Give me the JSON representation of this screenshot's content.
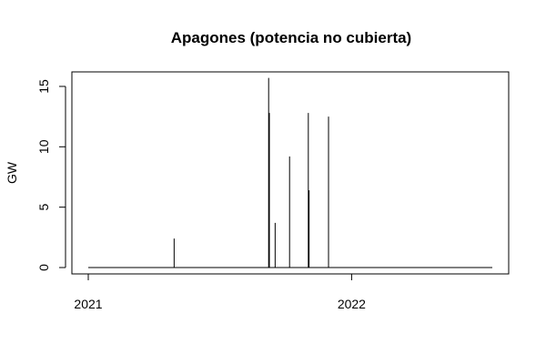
{
  "chart_data": {
    "type": "line",
    "title": "Apagones (potencia no cubierta)",
    "xlabel": "",
    "ylabel": "GW",
    "x_is_date": true,
    "xlim": [
      "2021-01-01",
      "2022-07-15"
    ],
    "ylim": [
      0,
      15.6
    ],
    "x_ticks": [
      {
        "label": "2021",
        "date": "2021-01-01"
      },
      {
        "label": "2022",
        "date": "2022-01-01"
      }
    ],
    "y_ticks": [
      0,
      5,
      10,
      15
    ],
    "grid": false,
    "legend": "none",
    "series": [
      {
        "points": [
          {
            "x": "2021-01-01",
            "y": 0
          },
          {
            "x": "2021-04-30",
            "y": 2.4
          },
          {
            "x": "2021-09-08",
            "y": 15.7
          },
          {
            "x": "2021-09-09",
            "y": 12.8
          },
          {
            "x": "2021-09-17",
            "y": 3.7
          },
          {
            "x": "2021-10-07",
            "y": 9.2
          },
          {
            "x": "2021-11-02",
            "y": 12.8
          },
          {
            "x": "2021-11-03",
            "y": 6.4
          },
          {
            "x": "2021-11-30",
            "y": 12.5
          },
          {
            "x": "2022-07-15",
            "y": 0
          }
        ]
      }
    ]
  }
}
